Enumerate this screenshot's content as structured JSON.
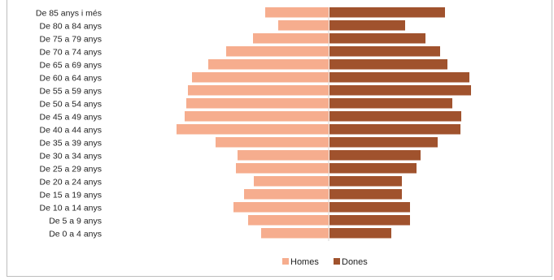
{
  "chart_data": {
    "type": "bar",
    "orientation": "horizontal",
    "layout": "population-pyramid",
    "categories": [
      "De 85 anys i més",
      "De 80 a 84 anys",
      "De 75 a 79 anys",
      "De 70 a 74 anys",
      "De 65 a 69 anys",
      "De 60 a 64 anys",
      "De 55 a 59 anys",
      "De 50 a 54 anys",
      "De 45 a 49 anys",
      "De 40 a 44 anys",
      "De 35 a 39 anys",
      "De 30 a 34 anys",
      "De 25 a 29 anys",
      "De 20 a 24 anys",
      "De 15 a 19 anys",
      "De 10 a 14 anys",
      "De 5 a 9 anys",
      "De 0 a 4 anys"
    ],
    "series": [
      {
        "name": "Homes",
        "color": "#f6ad8e",
        "side": "left",
        "values": [
          78,
          62,
          93,
          126,
          148,
          168,
          173,
          175,
          177,
          187,
          139,
          112,
          114,
          92,
          104,
          117,
          99,
          83
        ]
      },
      {
        "name": "Dones",
        "color": "#a0522d",
        "side": "right",
        "values": [
          142,
          93,
          118,
          136,
          145,
          172,
          174,
          151,
          162,
          161,
          133,
          112,
          107,
          89,
          89,
          99,
          99,
          76
        ]
      }
    ],
    "legend": "bottom",
    "grid": false
  }
}
